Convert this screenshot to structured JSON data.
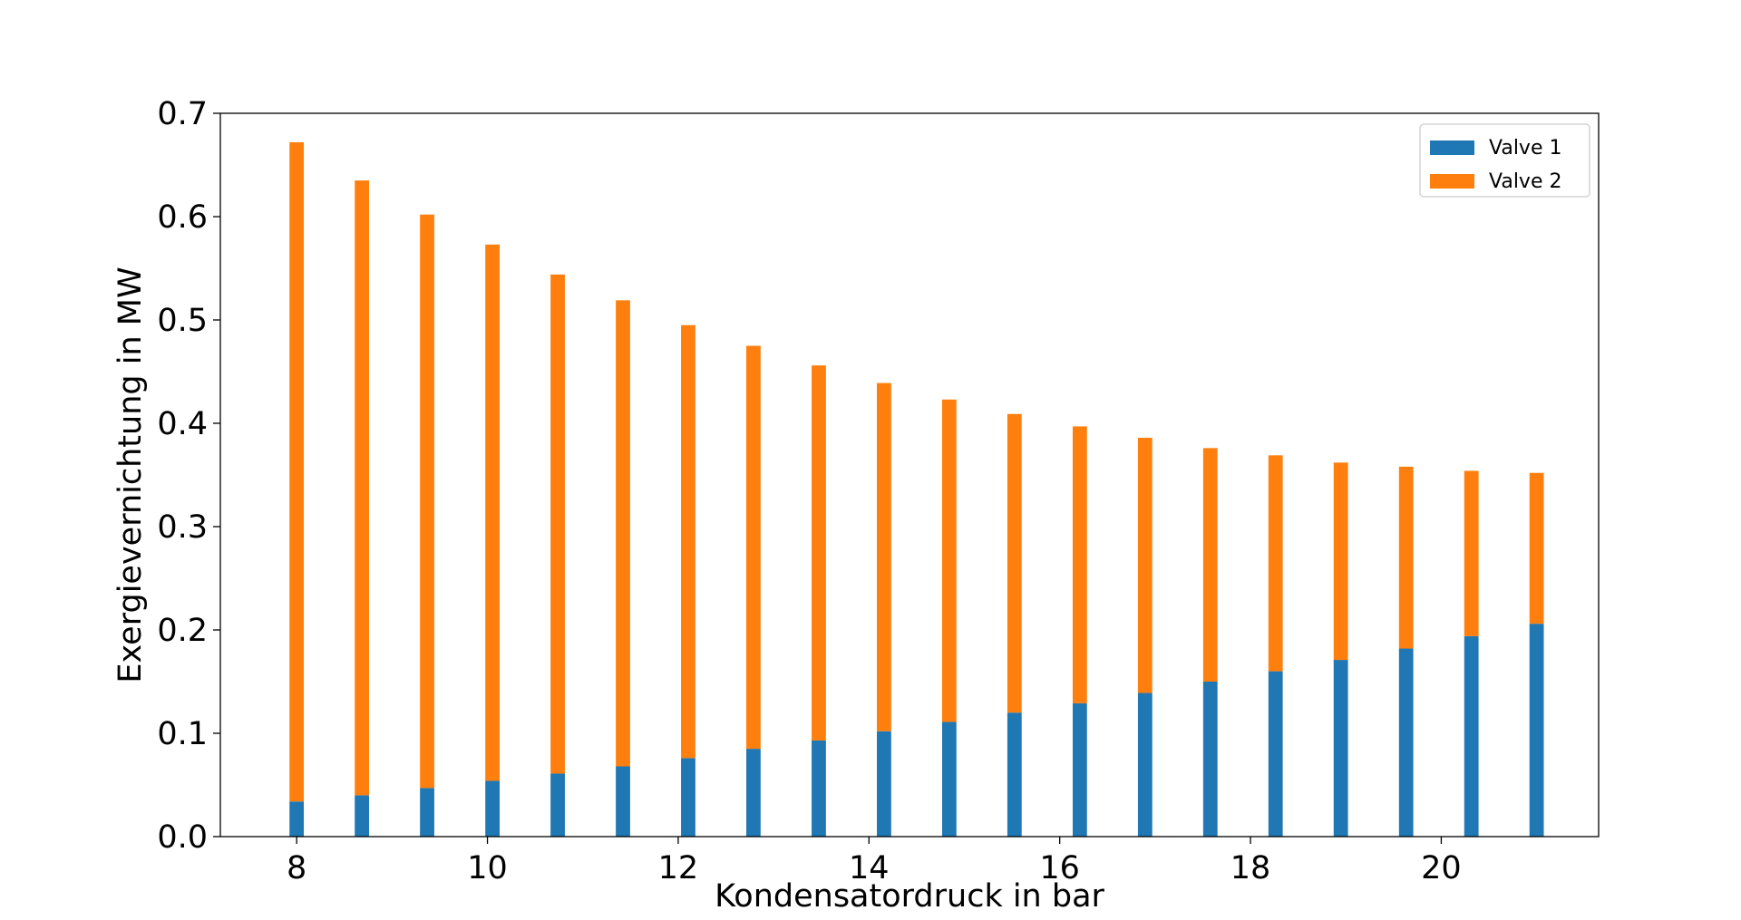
{
  "chart_data": {
    "type": "bar",
    "stacked": true,
    "xlabel": "Kondensatordruck in bar",
    "ylabel": "Exergievernichtung in MW",
    "xlim": [
      7.2,
      21.65
    ],
    "ylim": [
      0.0,
      0.7
    ],
    "xticks": [
      8,
      10,
      12,
      14,
      16,
      18,
      20
    ],
    "xtick_labels": [
      "8",
      "10",
      "12",
      "14",
      "16",
      "18",
      "20"
    ],
    "yticks": [
      0.0,
      0.1,
      0.2,
      0.3,
      0.4,
      0.5,
      0.6,
      0.7
    ],
    "ytick_labels": [
      "0.0",
      "0.1",
      "0.2",
      "0.3",
      "0.4",
      "0.5",
      "0.6",
      "0.7"
    ],
    "grid": false,
    "legend_position": "top-right",
    "bar_width": 0.15,
    "x": [
      8.0,
      8.684,
      9.368,
      10.053,
      10.737,
      11.421,
      12.105,
      12.789,
      13.474,
      14.158,
      14.842,
      15.526,
      16.211,
      16.895,
      17.579,
      18.263,
      18.947,
      19.632,
      20.316,
      21.0
    ],
    "series": [
      {
        "name": "Valve 1",
        "color": "#1f77b4",
        "values": [
          0.034,
          0.04,
          0.047,
          0.054,
          0.061,
          0.068,
          0.076,
          0.085,
          0.093,
          0.102,
          0.111,
          0.12,
          0.129,
          0.139,
          0.15,
          0.16,
          0.171,
          0.182,
          0.194,
          0.206
        ]
      },
      {
        "name": "Valve 2",
        "color": "#ff7f0e",
        "values": [
          0.638,
          0.595,
          0.555,
          0.519,
          0.483,
          0.451,
          0.419,
          0.39,
          0.363,
          0.337,
          0.312,
          0.289,
          0.268,
          0.247,
          0.226,
          0.209,
          0.191,
          0.176,
          0.16,
          0.146
        ]
      }
    ]
  }
}
